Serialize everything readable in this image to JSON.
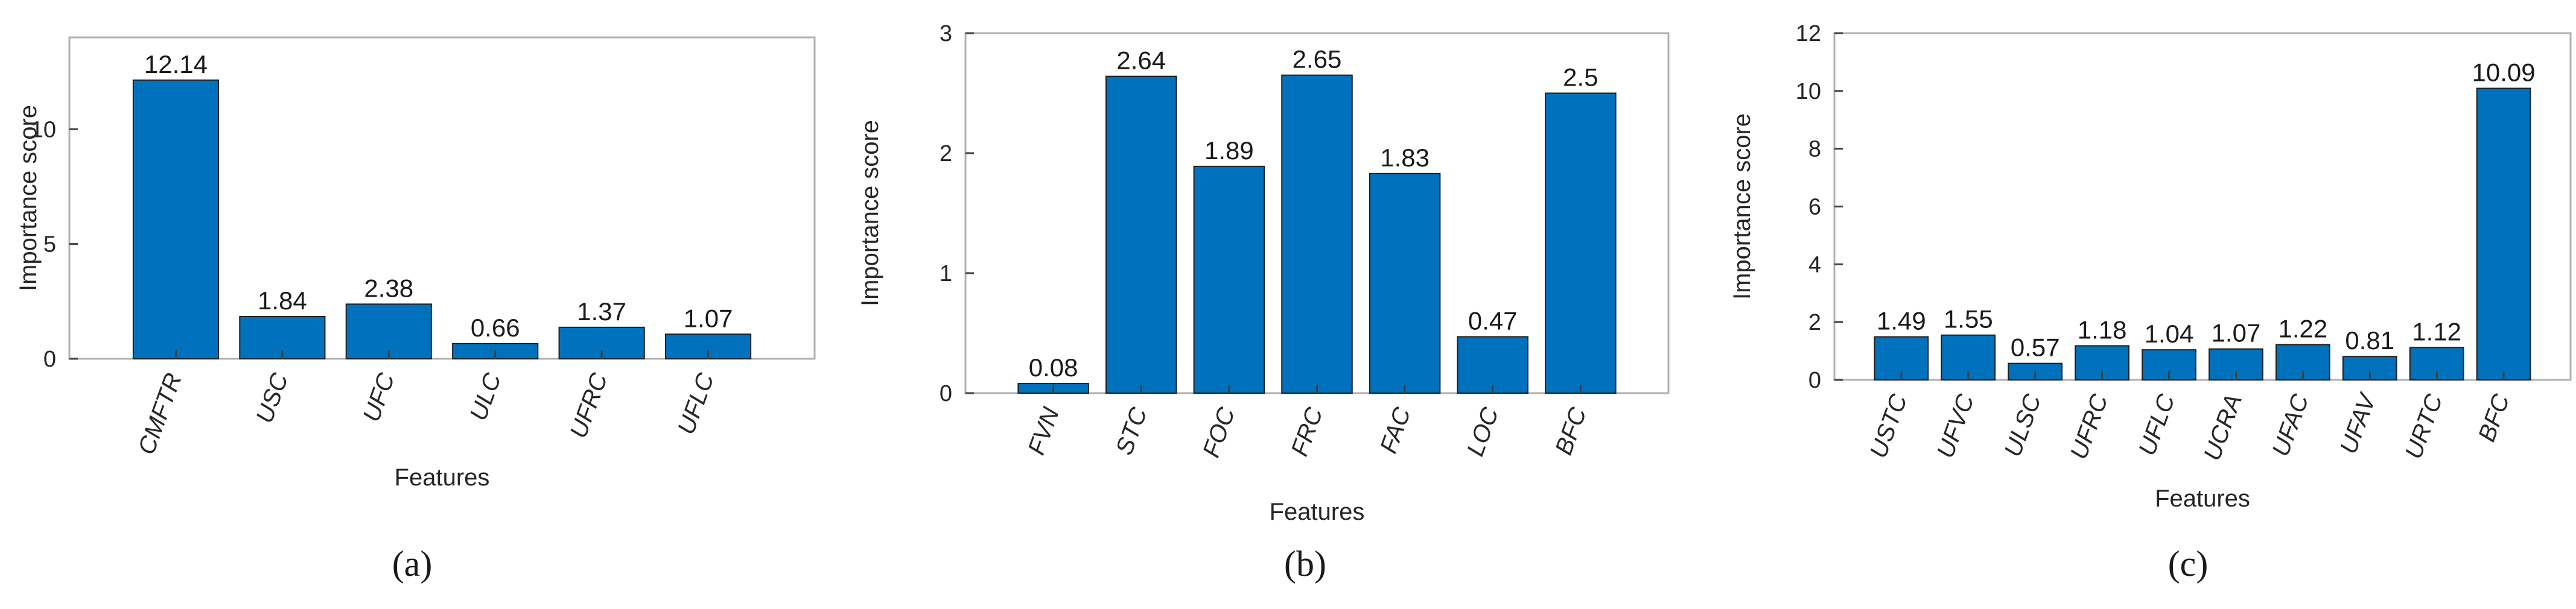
{
  "chart_data": [
    {
      "type": "bar",
      "panel_label": "(a)",
      "categories": [
        "CMFTR",
        "USC",
        "UFC",
        "ULC",
        "UFRC",
        "UFLC"
      ],
      "values": [
        12.14,
        1.84,
        2.38,
        0.66,
        1.37,
        1.07
      ],
      "data_labels": [
        "12.14",
        "1.84",
        "2.38",
        "0.66",
        "1.37",
        "1.07"
      ],
      "xlabel": "Features",
      "ylabel": "Importance score",
      "ylim": [
        0,
        14
      ],
      "yticks": [
        0,
        5,
        10
      ],
      "color": "#0072BD",
      "grid": false
    },
    {
      "type": "bar",
      "panel_label": "(b)",
      "categories": [
        "FVN",
        "STC",
        "FOC",
        "FRC",
        "FAC",
        "LOC",
        "BFC"
      ],
      "values": [
        0.08,
        2.64,
        1.89,
        2.65,
        1.83,
        0.47,
        2.5
      ],
      "data_labels": [
        "0.08",
        "2.64",
        "1.89",
        "2.65",
        "1.83",
        "0.47",
        "2.5"
      ],
      "xlabel": "Features",
      "ylabel": "Importance score",
      "ylim": [
        0,
        3
      ],
      "yticks": [
        0,
        1,
        2,
        3
      ],
      "color": "#0072BD",
      "grid": false
    },
    {
      "type": "bar",
      "panel_label": "(c)",
      "categories": [
        "USTC",
        "UFVC",
        "ULSC",
        "UFRC",
        "UFLC",
        "UCRA",
        "UFAC",
        "UFAV",
        "URTC",
        "BFC"
      ],
      "values": [
        1.49,
        1.55,
        0.57,
        1.18,
        1.04,
        1.07,
        1.22,
        0.81,
        1.12,
        10.09
      ],
      "data_labels": [
        "1.49",
        "1.55",
        "0.57",
        "1.18",
        "1.04",
        "1.07",
        "1.22",
        "0.81",
        "1.12",
        "10.09"
      ],
      "xlabel": "Features",
      "ylabel": "Importance score",
      "ylim": [
        0,
        12
      ],
      "yticks": [
        0,
        2,
        4,
        6,
        8,
        10,
        12
      ],
      "color": "#0072BD",
      "grid": false
    }
  ]
}
